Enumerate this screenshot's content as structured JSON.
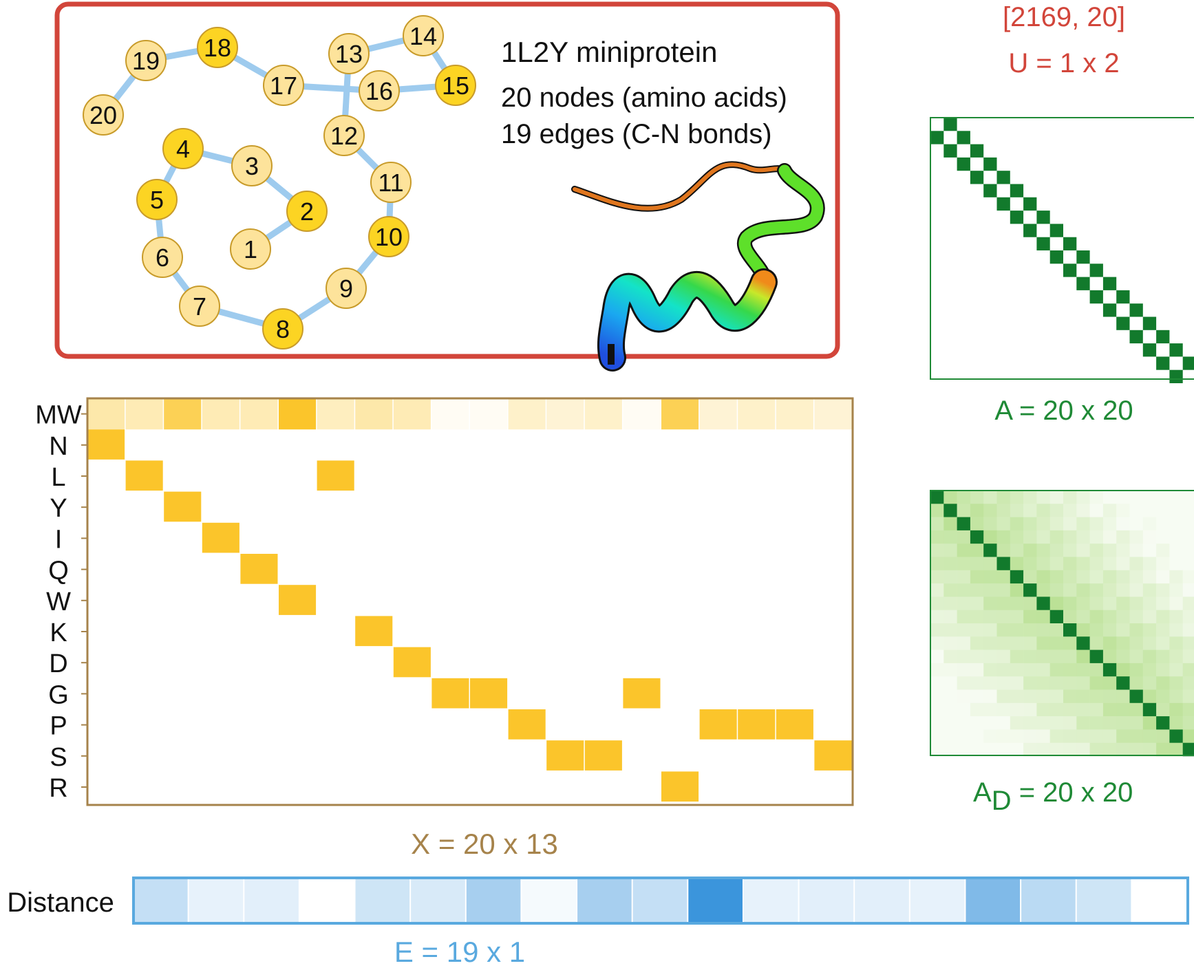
{
  "graph_panel": {
    "title": "1L2Y miniprotein",
    "nodes_text": "20 nodes (amino acids)",
    "edges_text": "19 edges (C-N bonds)",
    "nodes": [
      {
        "id": "1",
        "tone": "light"
      },
      {
        "id": "2",
        "tone": "dark"
      },
      {
        "id": "3",
        "tone": "light"
      },
      {
        "id": "4",
        "tone": "dark"
      },
      {
        "id": "5",
        "tone": "dark"
      },
      {
        "id": "6",
        "tone": "light"
      },
      {
        "id": "7",
        "tone": "light"
      },
      {
        "id": "8",
        "tone": "dark"
      },
      {
        "id": "9",
        "tone": "light"
      },
      {
        "id": "10",
        "tone": "dark"
      },
      {
        "id": "11",
        "tone": "light"
      },
      {
        "id": "12",
        "tone": "light"
      },
      {
        "id": "13",
        "tone": "light"
      },
      {
        "id": "14",
        "tone": "light"
      },
      {
        "id": "15",
        "tone": "dark"
      },
      {
        "id": "16",
        "tone": "light"
      },
      {
        "id": "17",
        "tone": "light"
      },
      {
        "id": "18",
        "tone": "dark"
      },
      {
        "id": "19",
        "tone": "light"
      },
      {
        "id": "20",
        "tone": "light"
      }
    ]
  },
  "global_features": {
    "shape": "[2169, 20]",
    "label": "U = 1 x 2"
  },
  "feature_matrix": {
    "label": "X = 20 x 13",
    "row_labels": [
      "MW",
      "N",
      "L",
      "Y",
      "I",
      "Q",
      "W",
      "K",
      "D",
      "G",
      "P",
      "S",
      "R"
    ],
    "sequence_rows": [
      1,
      2,
      3,
      4,
      5,
      6,
      2,
      7,
      8,
      9,
      9,
      10,
      11,
      11,
      9,
      12,
      10,
      10,
      10,
      11
    ],
    "mw_intensity": [
      0.4,
      0.35,
      0.8,
      0.35,
      0.35,
      1.0,
      0.3,
      0.4,
      0.35,
      0.05,
      0.05,
      0.25,
      0.2,
      0.25,
      0.05,
      0.8,
      0.2,
      0.25,
      0.25,
      0.2
    ]
  },
  "adjacency": {
    "label": "A = 20 x 20",
    "size": 20
  },
  "distance_matrix": {
    "label_main": "A",
    "label_sub": "D",
    "label_rest": " = 20 x 20",
    "size": 20
  },
  "edge_features": {
    "row_label": "Distance",
    "label": "E = 19 x 1",
    "values": [
      0.3,
      0.12,
      0.15,
      0.0,
      0.25,
      0.2,
      0.45,
      0.05,
      0.45,
      0.3,
      1.0,
      0.12,
      0.15,
      0.15,
      0.12,
      0.65,
      0.35,
      0.25,
      0.0
    ]
  },
  "colors": {
    "graph_frame": "#d2453a",
    "global_text": "#d2453a",
    "edge_line": "#9ecbee",
    "node_light": "#fde39b",
    "node_dark": "#fcd423",
    "feature_cell": "#fbc52b",
    "feature_frame": "#a6834b",
    "feature_text": "#a6834b",
    "adjacency_cell": "#127a2c",
    "adjacency_text": "#1f8a36",
    "distance_fill": "#9fd56a",
    "edge_feature_frame": "#59a9df",
    "edge_feature_dark": "#3b95dc",
    "edge_feature_text": "#59a9df"
  }
}
